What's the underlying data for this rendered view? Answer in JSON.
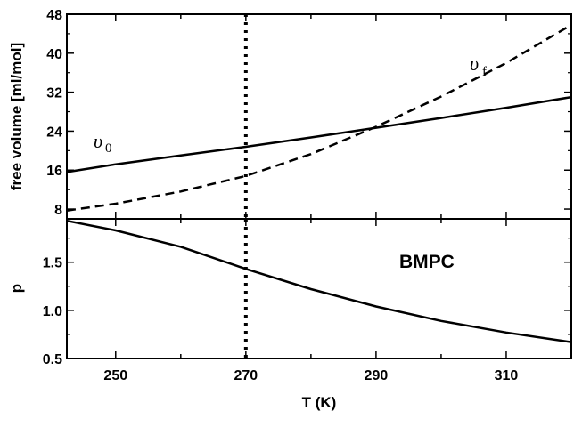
{
  "chart_data": [
    {
      "type": "line",
      "ylabel": "free volume  [ml/mol]",
      "xlim": [
        242.5,
        320
      ],
      "ylim": [
        6,
        48
      ],
      "xticks": [
        250,
        270,
        290,
        310
      ],
      "yticks": [
        8,
        16,
        24,
        32,
        40,
        48
      ],
      "ytick_labels": [
        "8",
        "16",
        "24",
        "32",
        "40",
        "48"
      ],
      "series": [
        {
          "name": "υ0",
          "label_main": "υ",
          "label_sub": "0",
          "style": "solid",
          "x": [
            242.5,
            250,
            260,
            270,
            280,
            290,
            300,
            310,
            320
          ],
          "y": [
            15.6,
            17.2,
            19.0,
            20.8,
            22.7,
            24.7,
            26.7,
            28.8,
            31.0
          ]
        },
        {
          "name": "υf",
          "label_main": "υ",
          "label_sub": "f",
          "style": "dashed",
          "x": [
            242.5,
            250,
            260,
            270,
            280,
            290,
            300,
            310,
            320
          ],
          "y": [
            7.7,
            9.1,
            11.6,
            14.8,
            19.3,
            24.9,
            31.1,
            38.0,
            45.8
          ]
        }
      ],
      "vline": {
        "x": 270,
        "style": "dotted"
      }
    },
    {
      "type": "line",
      "xlabel": "T  (K)",
      "ylabel": "p",
      "xlim": [
        242.5,
        320
      ],
      "ylim": [
        0.5,
        1.95
      ],
      "xticks": [
        250,
        270,
        290,
        310
      ],
      "xtick_labels": [
        "250",
        "270",
        "290",
        "310"
      ],
      "yticks": [
        0.5,
        1.0,
        1.5
      ],
      "ytick_labels": [
        "0.5",
        "1.0",
        "1.5"
      ],
      "annotation": "BMPC",
      "series": [
        {
          "style": "solid",
          "x": [
            242.5,
            250,
            260,
            270,
            280,
            290,
            300,
            310,
            320
          ],
          "y": [
            1.93,
            1.83,
            1.66,
            1.43,
            1.22,
            1.04,
            0.89,
            0.77,
            0.67
          ]
        }
      ],
      "vline": {
        "x": 270,
        "style": "dotted"
      }
    }
  ]
}
